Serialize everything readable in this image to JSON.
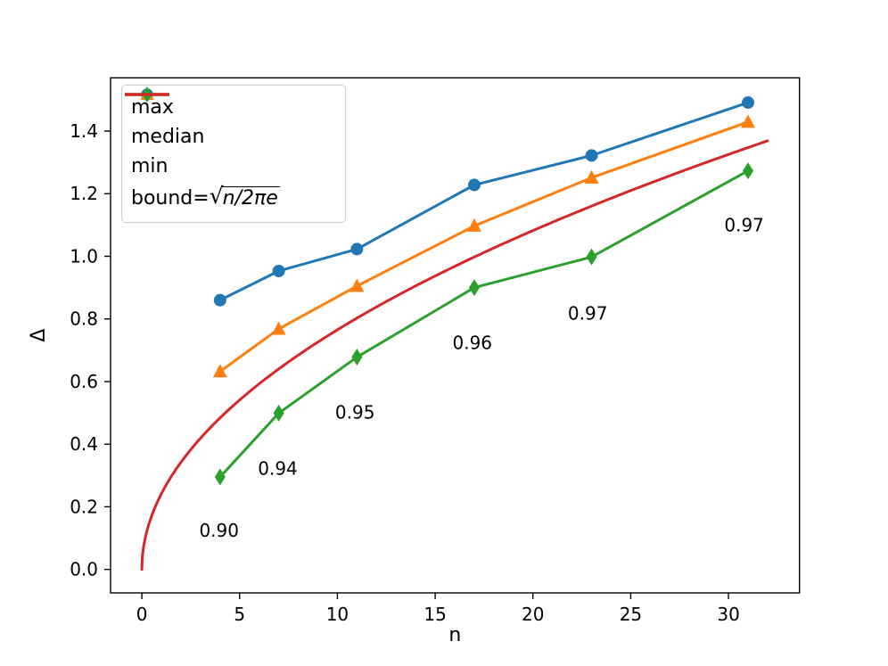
{
  "chart_data": {
    "type": "line",
    "title": "",
    "xlabel": "n",
    "ylabel": "Δ",
    "xlim": [
      -1.6,
      33.63
    ],
    "ylim": [
      -0.075,
      1.57
    ],
    "grid": false,
    "xticks": {
      "values": [
        0,
        5,
        10,
        15,
        20,
        25,
        30
      ],
      "labels": [
        "0",
        "5",
        "10",
        "15",
        "20",
        "25",
        "30"
      ]
    },
    "yticks": {
      "values": [
        0.0,
        0.2,
        0.4,
        0.6,
        0.8,
        1.0,
        1.2,
        1.4
      ],
      "labels": [
        "0.0",
        "0.2",
        "0.4",
        "0.6",
        "0.8",
        "1.0",
        "1.2",
        "1.4"
      ]
    },
    "x": [
      4,
      7,
      11,
      17,
      23,
      31
    ],
    "series": [
      {
        "name": "max",
        "marker": "circle",
        "color": "#1f77b4",
        "values": [
          0.86,
          0.953,
          1.023,
          1.228,
          1.322,
          1.491
        ]
      },
      {
        "name": "median",
        "marker": "triangle",
        "color": "#ff7f0e",
        "values": [
          0.632,
          0.768,
          0.905,
          1.097,
          1.251,
          1.429
        ]
      },
      {
        "name": "min",
        "marker": "diamond",
        "color": "#2ca02c",
        "values": [
          0.295,
          0.499,
          0.678,
          0.9,
          0.998,
          1.273
        ]
      }
    ],
    "bound": {
      "name": "bound=sqrt(n/2pie)",
      "color": "#d62728",
      "formula": "sqrt(x/(2*pi*e))",
      "x_range": [
        0,
        32
      ],
      "end_value": 1.369
    },
    "annotations": [
      {
        "text": "0.90",
        "x": 3.95,
        "y": 0.125
      },
      {
        "text": "0.94",
        "x": 6.95,
        "y": 0.322
      },
      {
        "text": "0.95",
        "x": 10.9,
        "y": 0.502
      },
      {
        "text": "0.96",
        "x": 16.9,
        "y": 0.724
      },
      {
        "text": "0.97",
        "x": 22.8,
        "y": 0.818
      },
      {
        "text": "0.97",
        "x": 30.8,
        "y": 1.099
      }
    ],
    "legend": {
      "position": "upper left",
      "items": [
        {
          "label": "max",
          "marker": "circle",
          "color": "#1f77b4"
        },
        {
          "label": "median",
          "marker": "triangle",
          "color": "#ff7f0e"
        },
        {
          "label": "min",
          "marker": "diamond",
          "color": "#2ca02c"
        },
        {
          "label_prefix": "bound=",
          "sqrt": "√",
          "radicand": "n/2πe",
          "marker": "line",
          "color": "#d62728"
        }
      ]
    }
  }
}
